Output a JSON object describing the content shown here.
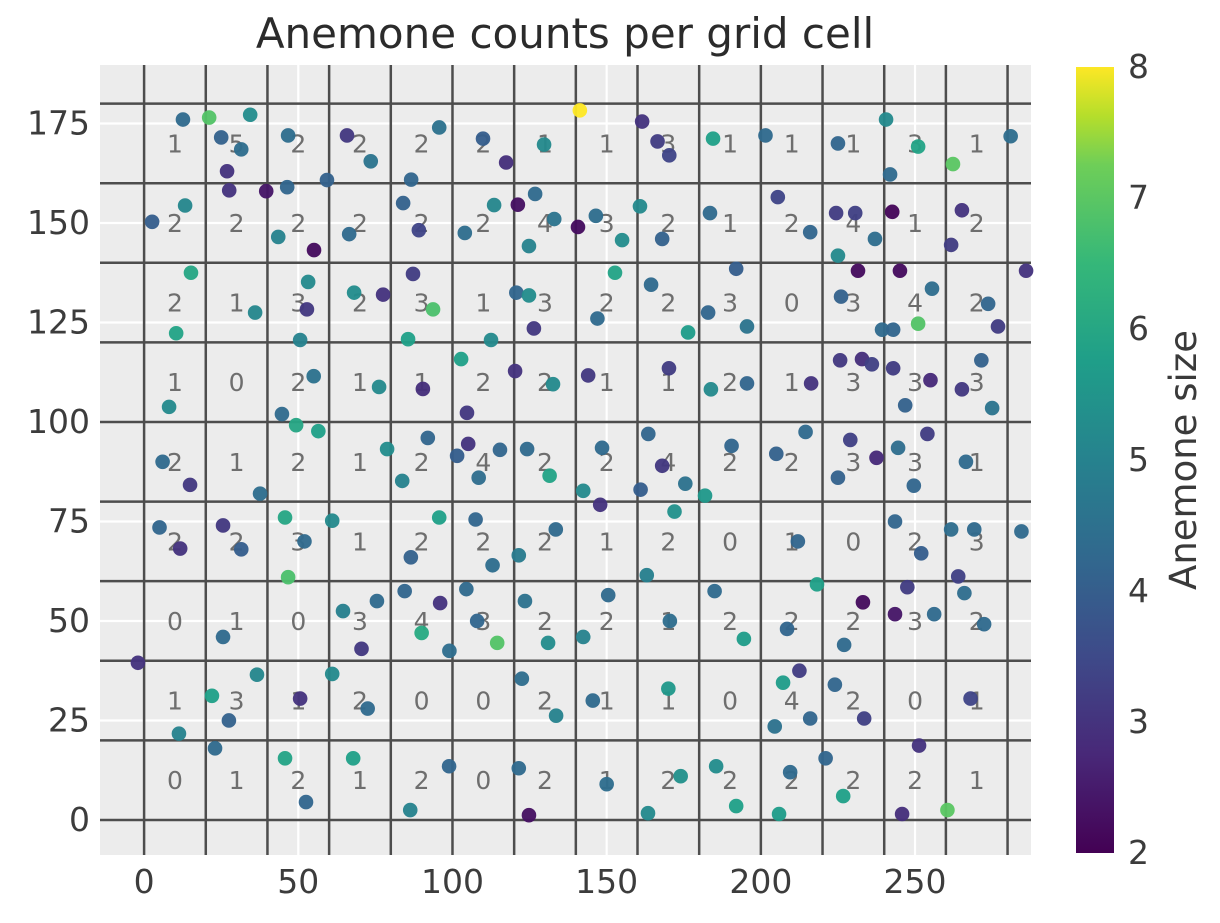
{
  "title": "Anemone counts per grid cell",
  "axes": {
    "x_ticks": [
      0,
      50,
      100,
      150,
      200,
      250
    ],
    "y_ticks": [
      0,
      25,
      50,
      75,
      100,
      125,
      150,
      175
    ],
    "xlim": [
      -14.3,
      287.6
    ],
    "ylim": [
      -8.8,
      189.7
    ]
  },
  "grid": {
    "cell_size": 20,
    "cols": 14,
    "rows": 9,
    "x_range": [
      0,
      280
    ],
    "y_range": [
      0,
      180
    ],
    "dark_line_color": "#4d4d4d",
    "white_line_color": "#ffffff",
    "plot_bg_color": "#ececec"
  },
  "colorbar": {
    "label": "Anemone size",
    "ticks": [
      2,
      3,
      4,
      5,
      6,
      7,
      8
    ],
    "vmin": 2,
    "vmax": 8,
    "colormap": "viridis"
  },
  "chart_data": {
    "type": "scatter",
    "title": "Anemone counts per grid cell",
    "colorbar_label": "Anemone size",
    "cell_counts_top_to_bottom": [
      [
        1,
        5,
        2,
        2,
        2,
        2,
        1,
        1,
        3,
        1,
        1,
        1,
        3,
        1
      ],
      [
        2,
        2,
        2,
        2,
        2,
        2,
        4,
        3,
        2,
        1,
        2,
        4,
        1,
        2
      ],
      [
        2,
        1,
        3,
        2,
        3,
        1,
        3,
        2,
        2,
        3,
        0,
        3,
        4,
        2
      ],
      [
        1,
        0,
        2,
        1,
        1,
        2,
        2,
        1,
        1,
        2,
        1,
        3,
        3,
        3
      ],
      [
        2,
        1,
        2,
        1,
        2,
        4,
        2,
        2,
        4,
        2,
        2,
        3,
        3,
        1
      ],
      [
        2,
        2,
        3,
        1,
        2,
        2,
        2,
        1,
        2,
        0,
        1,
        0,
        2,
        3
      ],
      [
        0,
        1,
        0,
        3,
        4,
        3,
        2,
        2,
        1,
        2,
        2,
        2,
        3,
        2
      ],
      [
        1,
        3,
        1,
        2,
        0,
        0,
        2,
        1,
        1,
        0,
        4,
        2,
        0,
        1
      ],
      [
        0,
        1,
        2,
        1,
        2,
        0,
        2,
        1,
        2,
        2,
        2,
        2,
        2,
        1
      ]
    ],
    "points": [
      [
        12.6,
        176,
        4.3
      ],
      [
        21.1,
        176.5,
        6.9
      ],
      [
        34.4,
        177.2,
        5.3
      ],
      [
        26.9,
        163,
        3.0
      ],
      [
        31.5,
        168.5,
        4.4
      ],
      [
        25.0,
        171.5,
        4.1
      ],
      [
        46.7,
        172,
        4.4
      ],
      [
        59.3,
        160.8,
        4.1
      ],
      [
        65.8,
        172,
        3.1
      ],
      [
        73.5,
        165.5,
        4.6
      ],
      [
        95.7,
        174,
        4.5
      ],
      [
        86.6,
        160.9,
        4.2
      ],
      [
        109.9,
        171.2,
        4.0
      ],
      [
        117.4,
        165.2,
        2.9
      ],
      [
        129.7,
        169.7,
        5.2
      ],
      [
        141.3,
        178.3,
        8.0
      ],
      [
        161.5,
        175.5,
        3.0
      ],
      [
        166.5,
        170.5,
        3.2
      ],
      [
        170.3,
        167,
        3.4
      ],
      [
        184.5,
        171.2,
        5.8
      ],
      [
        201.5,
        172,
        4.3
      ],
      [
        225.0,
        170,
        4.2
      ],
      [
        240.6,
        176,
        5.2
      ],
      [
        251.0,
        169.2,
        5.9
      ],
      [
        241.9,
        162.2,
        4.3
      ],
      [
        262.3,
        164.8,
        7.0
      ],
      [
        13.3,
        154.4,
        5.1
      ],
      [
        2.6,
        150.3,
        4.0
      ],
      [
        27.6,
        158.2,
        3.0
      ],
      [
        39.6,
        158.0,
        2.4
      ],
      [
        46.4,
        159.0,
        4.2
      ],
      [
        43.5,
        146.5,
        5.0
      ],
      [
        66.5,
        147.2,
        4.3
      ],
      [
        55.1,
        143.2,
        2.2
      ],
      [
        89.1,
        148.2,
        3.4
      ],
      [
        84.0,
        155.0,
        4.1
      ],
      [
        113.5,
        154.5,
        5.1
      ],
      [
        104.0,
        147.5,
        4.4
      ],
      [
        121.2,
        154.6,
        2.3
      ],
      [
        126.8,
        157.3,
        4.3
      ],
      [
        133.0,
        151.0,
        4.6
      ],
      [
        124.8,
        144.2,
        5.0
      ],
      [
        140.7,
        149.0,
        2.2
      ],
      [
        146.5,
        151.8,
        4.4
      ],
      [
        155.0,
        145.7,
        5.3
      ],
      [
        160.8,
        154.2,
        5.2
      ],
      [
        168.0,
        146.0,
        4.1
      ],
      [
        183.5,
        152.5,
        4.3
      ],
      [
        216.0,
        147.7,
        4.2
      ],
      [
        205.5,
        156.5,
        3.4
      ],
      [
        224.4,
        152.5,
        3.2
      ],
      [
        230.6,
        152.5,
        3.3
      ],
      [
        225.0,
        141.8,
        5.2
      ],
      [
        237.0,
        146.0,
        4.4
      ],
      [
        242.6,
        152.8,
        2.1
      ],
      [
        265.2,
        153.2,
        3.0
      ],
      [
        261.7,
        144.5,
        3.2
      ],
      [
        15.2,
        137.5,
        6.0
      ],
      [
        10.4,
        122.3,
        5.9
      ],
      [
        36.0,
        127.5,
        5.1
      ],
      [
        53.2,
        135.2,
        5.2
      ],
      [
        52.8,
        128.3,
        3.1
      ],
      [
        50.6,
        120.6,
        5.0
      ],
      [
        68.1,
        132.5,
        5.3
      ],
      [
        77.5,
        132.0,
        3.0
      ],
      [
        93.7,
        128.3,
        6.8
      ],
      [
        85.6,
        120.8,
        5.8
      ],
      [
        87.2,
        137.2,
        3.2
      ],
      [
        112.5,
        120.6,
        5.2
      ],
      [
        120.7,
        132.5,
        4.2
      ],
      [
        124.8,
        131.8,
        5.3
      ],
      [
        126.4,
        123.5,
        3.1
      ],
      [
        152.7,
        137.5,
        5.9
      ],
      [
        147.0,
        126.0,
        4.3
      ],
      [
        164.4,
        134.5,
        4.3
      ],
      [
        176.4,
        122.5,
        5.7
      ],
      [
        182.9,
        127.5,
        4.2
      ],
      [
        192.0,
        138.5,
        4.0
      ],
      [
        195.5,
        124.0,
        4.6
      ],
      [
        231.5,
        138.0,
        2.2
      ],
      [
        239.3,
        123.2,
        4.3
      ],
      [
        226.0,
        131.5,
        4.1
      ],
      [
        242.9,
        123.2,
        4.2
      ],
      [
        245.1,
        138.0,
        2.2
      ],
      [
        251.0,
        124.7,
        6.9
      ],
      [
        255.5,
        133.5,
        4.4
      ],
      [
        273.7,
        129.7,
        4.2
      ],
      [
        276.9,
        124.0,
        3.2
      ],
      [
        8.1,
        103.8,
        5.2
      ],
      [
        44.7,
        102.0,
        4.3
      ],
      [
        55.0,
        111.5,
        4.5
      ],
      [
        76.2,
        108.8,
        5.2
      ],
      [
        90.4,
        108.3,
        2.9
      ],
      [
        102.8,
        115.8,
        5.8
      ],
      [
        104.7,
        102.3,
        3.1
      ],
      [
        120.3,
        112.8,
        3.0
      ],
      [
        132.6,
        109.5,
        5.2
      ],
      [
        144.0,
        111.7,
        3.1
      ],
      [
        170.2,
        113.5,
        3.2
      ],
      [
        183.8,
        108.2,
        5.2
      ],
      [
        195.5,
        109.7,
        4.2
      ],
      [
        216.3,
        109.7,
        3.0
      ],
      [
        225.7,
        115.5,
        3.1
      ],
      [
        232.8,
        115.8,
        2.9
      ],
      [
        236.0,
        114.5,
        3.3
      ],
      [
        242.9,
        113.5,
        3.2
      ],
      [
        246.8,
        104.2,
        4.1
      ],
      [
        255.0,
        110.5,
        2.8
      ],
      [
        265.2,
        108.2,
        3.1
      ],
      [
        271.5,
        115.5,
        4.1
      ],
      [
        275.0,
        103.5,
        4.6
      ],
      [
        14.9,
        84.2,
        3.1
      ],
      [
        6.0,
        90.0,
        4.3
      ],
      [
        37.6,
        82.0,
        4.4
      ],
      [
        49.3,
        99.2,
        6.0
      ],
      [
        56.5,
        97.7,
        5.8
      ],
      [
        78.8,
        93.2,
        5.3
      ],
      [
        83.7,
        85.2,
        5.0
      ],
      [
        92.0,
        96.0,
        4.2
      ],
      [
        105.1,
        94.5,
        3.0
      ],
      [
        115.4,
        93.0,
        4.2
      ],
      [
        108.5,
        86.0,
        4.4
      ],
      [
        101.5,
        91.5,
        4.0
      ],
      [
        124.2,
        93.2,
        4.3
      ],
      [
        131.5,
        86.5,
        5.9
      ],
      [
        142.4,
        82.7,
        5.2
      ],
      [
        148.5,
        93.5,
        4.3
      ],
      [
        163.5,
        97.0,
        4.2
      ],
      [
        168.0,
        89.0,
        3.1
      ],
      [
        175.5,
        84.5,
        4.5
      ],
      [
        161.0,
        83.0,
        4.0
      ],
      [
        181.9,
        81.5,
        5.6
      ],
      [
        190.5,
        94.0,
        4.2
      ],
      [
        205.0,
        92.0,
        4.1
      ],
      [
        214.5,
        97.5,
        4.3
      ],
      [
        229.0,
        95.5,
        3.3
      ],
      [
        225.0,
        86.0,
        4.1
      ],
      [
        237.5,
        91.0,
        2.8
      ],
      [
        249.6,
        84.0,
        4.2
      ],
      [
        244.5,
        93.5,
        4.4
      ],
      [
        254.0,
        97.0,
        3.2
      ],
      [
        266.5,
        90.0,
        4.3
      ],
      [
        11.7,
        68.2,
        3.0
      ],
      [
        5.0,
        73.5,
        4.2
      ],
      [
        31.5,
        68.0,
        4.0
      ],
      [
        25.6,
        74.0,
        3.1
      ],
      [
        45.7,
        76.0,
        6.0
      ],
      [
        46.7,
        61.0,
        6.8
      ],
      [
        52.0,
        70.0,
        4.3
      ],
      [
        61.0,
        75.2,
        5.2
      ],
      [
        95.7,
        76.0,
        5.8
      ],
      [
        86.5,
        66.0,
        4.1
      ],
      [
        107.5,
        75.5,
        4.2
      ],
      [
        113.0,
        64.0,
        4.4
      ],
      [
        121.5,
        66.5,
        4.8
      ],
      [
        133.5,
        73.0,
        4.3
      ],
      [
        147.9,
        79.2,
        3.0
      ],
      [
        163.0,
        61.5,
        4.9
      ],
      [
        172.0,
        77.5,
        5.4
      ],
      [
        212.0,
        70.0,
        4.2
      ],
      [
        243.5,
        75.0,
        4.2
      ],
      [
        252.0,
        67.0,
        4.0
      ],
      [
        261.7,
        73.0,
        4.4
      ],
      [
        269.2,
        73.0,
        4.3
      ],
      [
        264.0,
        61.2,
        3.3
      ],
      [
        25.6,
        46.0,
        4.3
      ],
      [
        64.5,
        52.5,
        4.9
      ],
      [
        70.5,
        43.0,
        3.1
      ],
      [
        75.5,
        55.0,
        4.3
      ],
      [
        84.5,
        57.5,
        4.2
      ],
      [
        90.0,
        47.0,
        6.1
      ],
      [
        96.0,
        54.5,
        3.0
      ],
      [
        99.0,
        42.5,
        4.4
      ],
      [
        104.5,
        58.0,
        4.3
      ],
      [
        114.5,
        44.5,
        6.9
      ],
      [
        108.0,
        50.0,
        4.2
      ],
      [
        123.5,
        55.0,
        4.5
      ],
      [
        131.0,
        44.5,
        5.3
      ],
      [
        142.4,
        46.0,
        5.0
      ],
      [
        150.5,
        56.5,
        4.3
      ],
      [
        170.5,
        50.0,
        4.4
      ],
      [
        185.0,
        57.5,
        4.3
      ],
      [
        194.5,
        45.5,
        5.7
      ],
      [
        218.2,
        59.2,
        5.8
      ],
      [
        208.5,
        48.0,
        4.2
      ],
      [
        233.1,
        54.7,
        2.2
      ],
      [
        227.0,
        44.0,
        4.3
      ],
      [
        243.5,
        51.7,
        2.4
      ],
      [
        256.2,
        51.7,
        4.3
      ],
      [
        247.5,
        58.5,
        3.2
      ],
      [
        272.4,
        49.2,
        4.3
      ],
      [
        266.0,
        57.0,
        4.4
      ],
      [
        11.3,
        21.7,
        5.0
      ],
      [
        22.0,
        31.2,
        5.8
      ],
      [
        36.6,
        36.5,
        5.1
      ],
      [
        27.5,
        25.0,
        4.1
      ],
      [
        50.6,
        30.5,
        3.0
      ],
      [
        61.0,
        36.7,
        5.2
      ],
      [
        72.5,
        28.0,
        4.3
      ],
      [
        122.5,
        35.5,
        4.4
      ],
      [
        133.6,
        26.2,
        5.0
      ],
      [
        145.5,
        30.0,
        4.3
      ],
      [
        170.0,
        33.0,
        5.6
      ],
      [
        207.2,
        34.5,
        5.7
      ],
      [
        216.0,
        25.5,
        4.2
      ],
      [
        204.5,
        23.5,
        4.5
      ],
      [
        212.5,
        37.5,
        3.2
      ],
      [
        224.0,
        34.0,
        4.2
      ],
      [
        233.5,
        25.5,
        3.3
      ],
      [
        268.0,
        30.5,
        3.4
      ],
      [
        23.0,
        18.0,
        4.3
      ],
      [
        45.7,
        15.5,
        5.9
      ],
      [
        52.5,
        4.5,
        4.2
      ],
      [
        67.8,
        15.5,
        5.8
      ],
      [
        98.9,
        13.5,
        4.2
      ],
      [
        86.3,
        2.5,
        5.0
      ],
      [
        121.5,
        13.0,
        4.3
      ],
      [
        124.8,
        1.2,
        2.3
      ],
      [
        150.0,
        9.0,
        4.4
      ],
      [
        163.4,
        1.7,
        5.2
      ],
      [
        174.0,
        11.0,
        5.4
      ],
      [
        185.5,
        13.5,
        5.3
      ],
      [
        192.0,
        3.5,
        5.8
      ],
      [
        205.9,
        1.5,
        5.7
      ],
      [
        209.5,
        12.0,
        4.3
      ],
      [
        226.7,
        6.0,
        5.8
      ],
      [
        221.0,
        15.5,
        4.2
      ],
      [
        245.8,
        1.5,
        2.9
      ],
      [
        251.3,
        18.7,
        3.0
      ],
      [
        260.5,
        2.5,
        7.0
      ],
      [
        281.0,
        171.8,
        4.4
      ],
      [
        286.0,
        138.0,
        3.0
      ],
      [
        284.5,
        72.5,
        4.3
      ],
      [
        -2.0,
        39.5,
        3.0
      ]
    ]
  }
}
